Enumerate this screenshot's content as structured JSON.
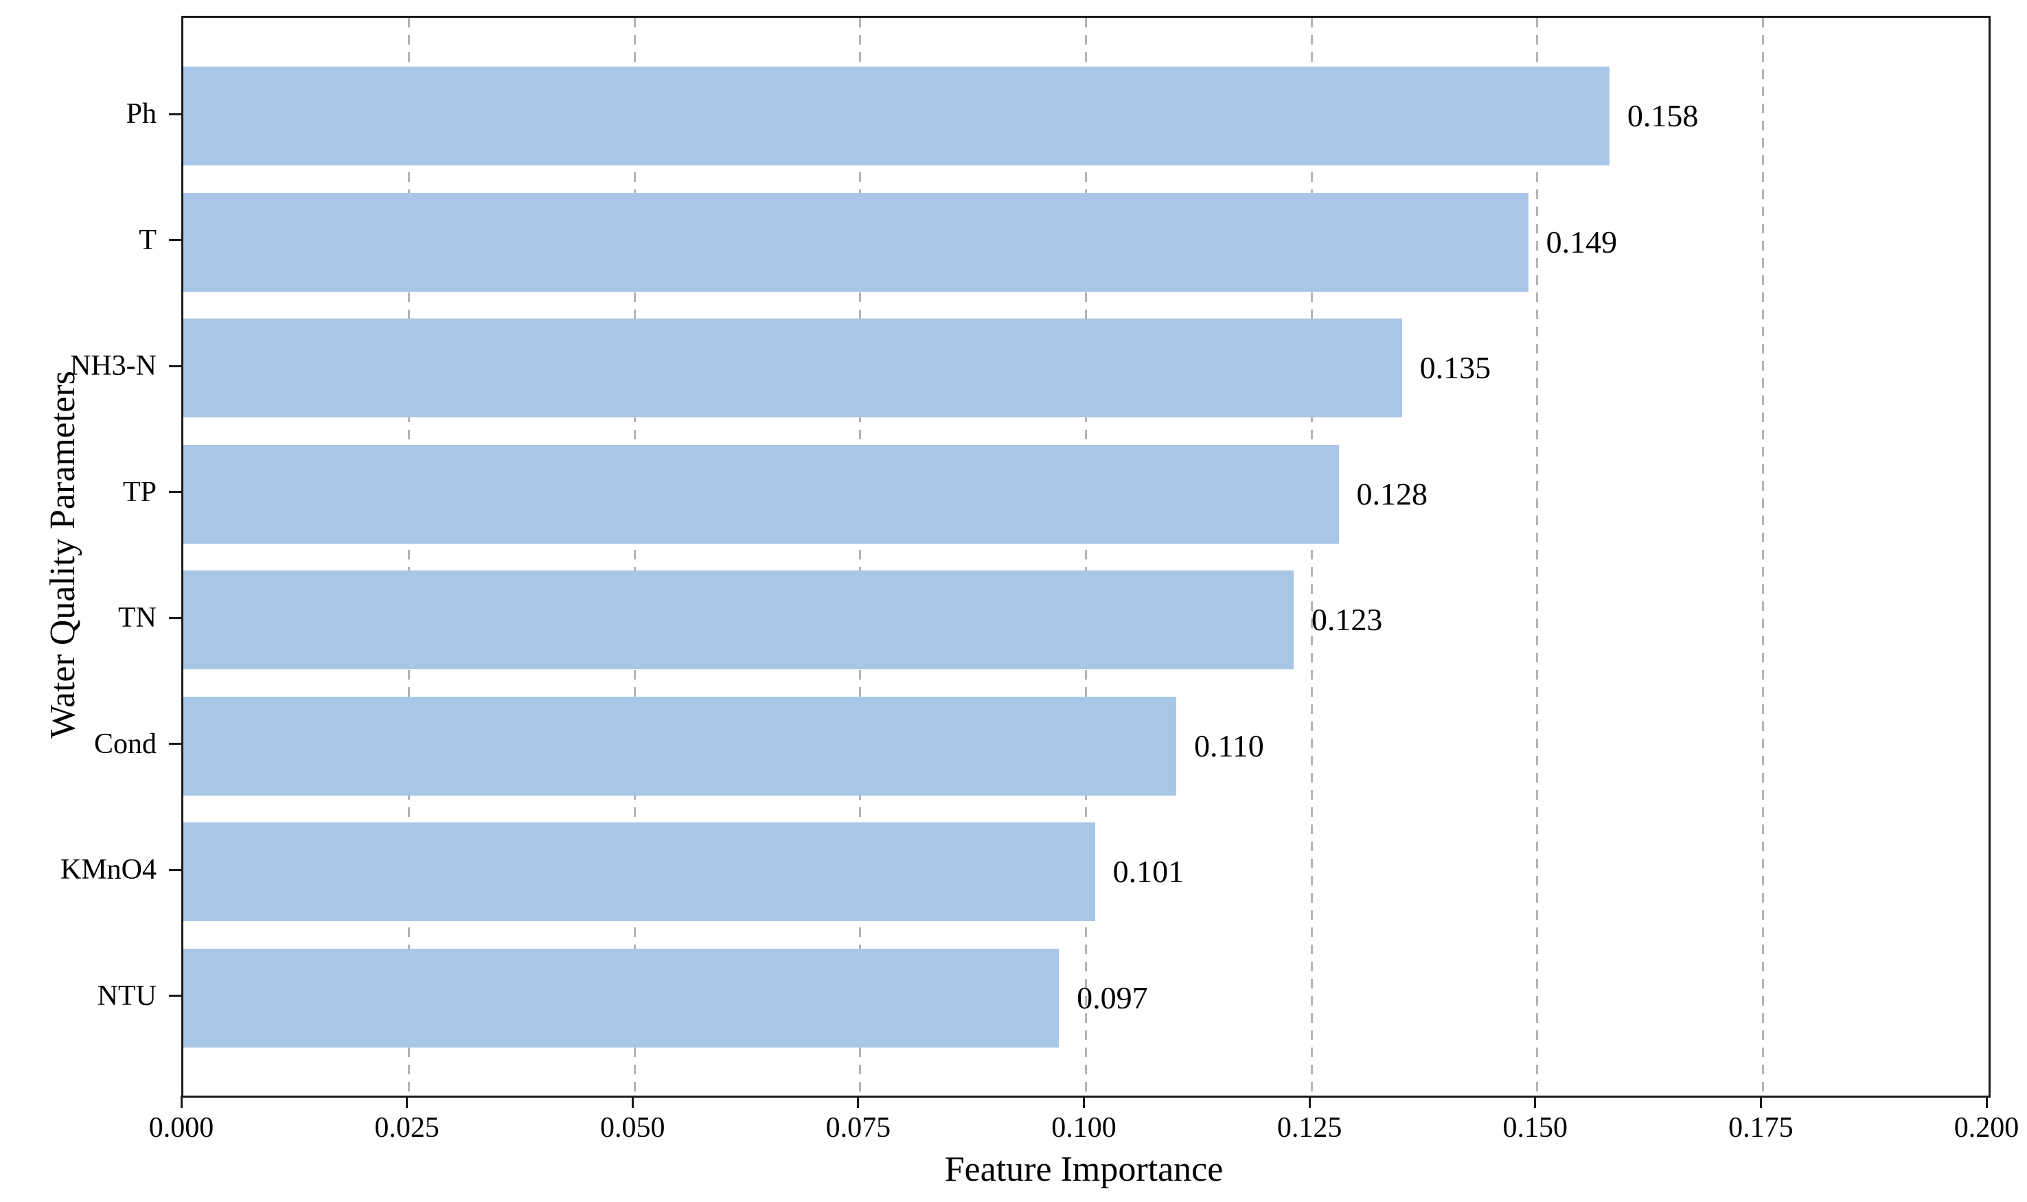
{
  "chart_data": {
    "type": "bar",
    "orientation": "horizontal",
    "title": "",
    "xlabel": "Feature Importance",
    "ylabel": "Water Quality Parameters",
    "categories": [
      "Ph",
      "T",
      "NH3-N",
      "TP",
      "TN",
      "Cond",
      "KMnO4",
      "NTU"
    ],
    "values": [
      0.158,
      0.149,
      0.135,
      0.128,
      0.123,
      0.11,
      0.101,
      0.097
    ],
    "bar_value_labels": [
      "0.158",
      "0.149",
      "0.135",
      "0.128",
      "0.123",
      "0.110",
      "0.101",
      "0.097"
    ],
    "xlim": [
      0.0,
      0.2
    ],
    "xtick_values": [
      0.0,
      0.025,
      0.05,
      0.075,
      0.1,
      0.125,
      0.15,
      0.175,
      0.2
    ],
    "xtick_labels": [
      "0.000",
      "0.025",
      "0.050",
      "0.075",
      "0.100",
      "0.125",
      "0.150",
      "0.175",
      "0.200"
    ],
    "grid": {
      "axis": "x",
      "line_style": "dashed",
      "position": "behind-bars"
    },
    "legend": "none",
    "colors": {
      "bar_fill": "#a8c7e6",
      "gridline": "#b4b4b4",
      "spine": "#1a1a1a",
      "text": "#000000",
      "background": "#ffffff"
    }
  }
}
